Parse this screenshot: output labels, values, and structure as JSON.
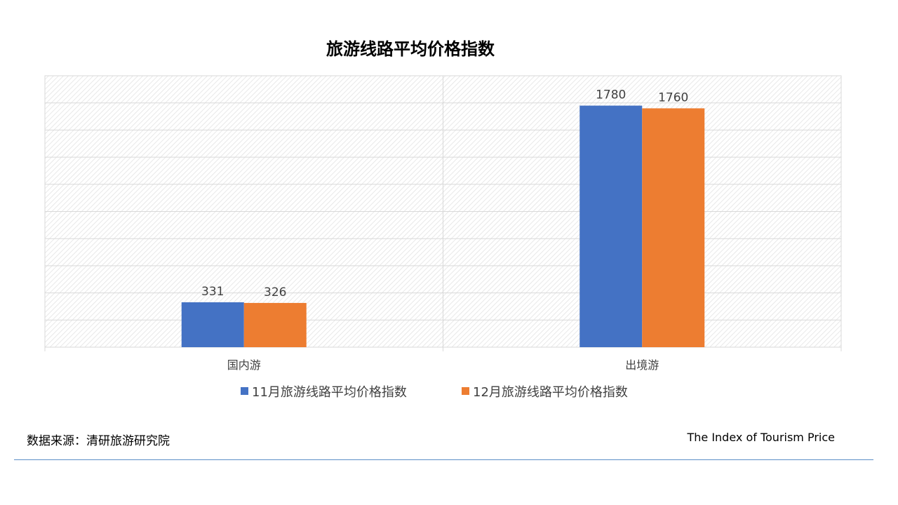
{
  "chart_data": {
    "type": "bar",
    "title": "旅游线路平均价格指数",
    "categories": [
      "国内游",
      "出境游"
    ],
    "series": [
      {
        "name": "11月旅游线路平均价格指数",
        "values": [
          331,
          1780
        ],
        "color": "#4472C4"
      },
      {
        "name": "12月旅游线路平均价格指数",
        "values": [
          326,
          1760
        ],
        "color": "#ED7D31"
      }
    ],
    "xlabel": "",
    "ylabel": "",
    "ylim": [
      0,
      2000
    ],
    "y_axis_labels_shown": false,
    "grid": true,
    "legend_position": "bottom"
  },
  "footer": {
    "source": "数据来源：清研旅游研究院",
    "index_name": "The Index of Tourism Price"
  }
}
